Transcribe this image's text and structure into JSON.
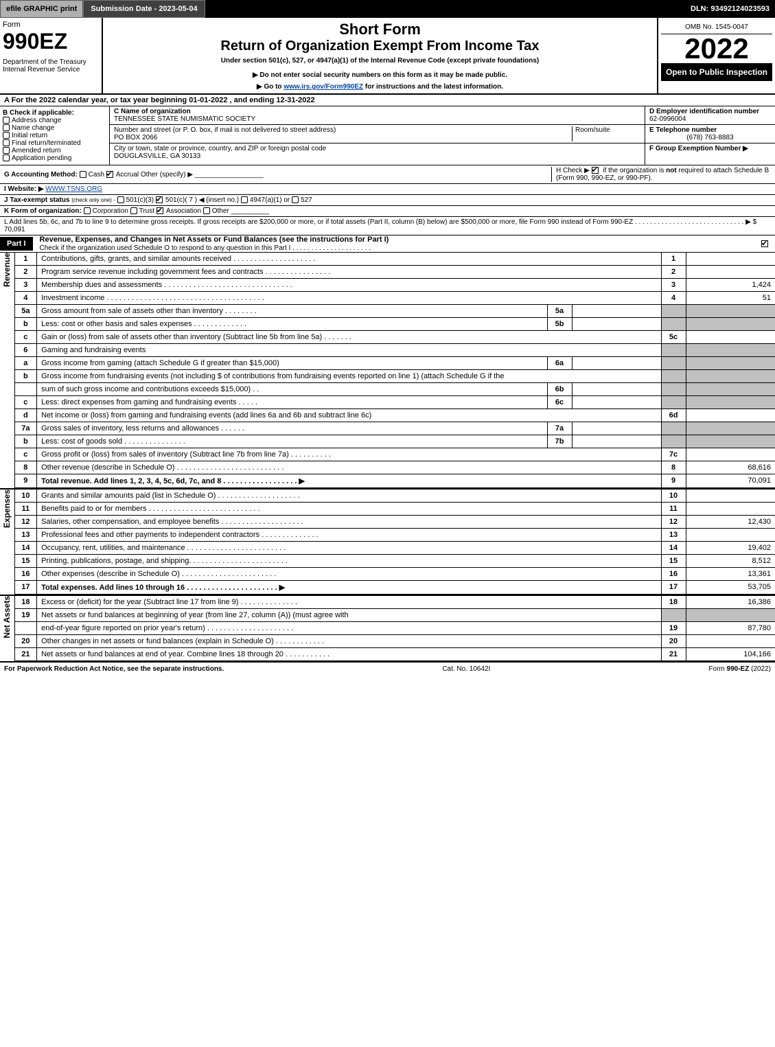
{
  "topbar": {
    "efile": "efile GRAPHIC print",
    "submission": "Submission Date - 2023-05-04",
    "dln": "DLN: 93492124023593"
  },
  "header": {
    "form_word": "Form",
    "form_number": "990EZ",
    "dept": "Department of the Treasury",
    "irs": "Internal Revenue Service",
    "short_form": "Short Form",
    "return_title": "Return of Organization Exempt From Income Tax",
    "under_section": "Under section 501(c), 527, or 4947(a)(1) of the Internal Revenue Code (except private foundations)",
    "no_ssn": "▶ Do not enter social security numbers on this form as it may be made public.",
    "goto": "▶ Go to ",
    "goto_link": "www.irs.gov/Form990EZ",
    "goto_suffix": " for instructions and the latest information.",
    "omb": "OMB No. 1545-0047",
    "year": "2022",
    "inspection": "Open to Public Inspection"
  },
  "row_a": "A  For the 2022 calendar year, or tax year beginning 01-01-2022  , and ending 12-31-2022",
  "section_b": {
    "title": "B  Check if applicable:",
    "items": [
      "Address change",
      "Name change",
      "Initial return",
      "Final return/terminated",
      "Amended return",
      "Application pending"
    ],
    "c_label": "C Name of organization",
    "c_name": "TENNESSEE STATE NUMISMATIC SOCIETY",
    "addr_label": "Number and street (or P. O. box, if mail is not delivered to street address)",
    "room_label": "Room/suite",
    "addr": "PO BOX 2066",
    "city_label": "City or town, state or province, country, and ZIP or foreign postal code",
    "city": "DOUGLASVILLE, GA  30133",
    "d_label": "D Employer identification number",
    "d_val": "62-0996004",
    "e_label": "E Telephone number",
    "e_val": "(678) 763-8883",
    "f_label": "F Group Exemption Number  ▶"
  },
  "row_g": {
    "label": "G Accounting Method:",
    "cash": "Cash",
    "accrual": "Accrual",
    "other": "Other (specify) ▶"
  },
  "row_h": {
    "text1": "H  Check ▶ ",
    "text2": " if the organization is ",
    "not": "not",
    "text3": " required to attach Schedule B (Form 990, 990-EZ, or 990-PF)."
  },
  "row_i": {
    "label": "I Website: ▶",
    "val": "WWW.TSNS.ORG"
  },
  "row_j": {
    "label": "J Tax-exempt status",
    "hint": "(check only one) -",
    "o1": "501(c)(3)",
    "o2": "501(c)( 7 ) ◀ (insert no.)",
    "o3": "4947(a)(1) or",
    "o4": "527"
  },
  "row_k": {
    "label": "K Form of organization:",
    "o1": "Corporation",
    "o2": "Trust",
    "o3": "Association",
    "o4": "Other"
  },
  "row_l": {
    "text": "L Add lines 5b, 6c, and 7b to line 9 to determine gross receipts. If gross receipts are $200,000 or more, or if total assets (Part II, column (B) below) are $500,000 or more, file Form 990 instead of Form 990-EZ  .  .  .  .  .  .  .  .  .  .  .  .  .  .  .  .  .  .  .  .  .  .  .  .  .  .  .  .  . ▶ $ ",
    "val": "70,091"
  },
  "part1": {
    "label": "Part I",
    "title": "Revenue, Expenses, and Changes in Net Assets or Fund Balances (see the instructions for Part I)",
    "check_line": "Check if the organization used Schedule O to respond to any question in this Part I  .  .  .  .  .  .  .  .  .  .  .  .  .  .  .  .  .  .  .  .  .  "
  },
  "sidelabels": {
    "revenue": "Revenue",
    "expenses": "Expenses",
    "netassets": "Net Assets"
  },
  "revenue_lines": [
    {
      "no": "1",
      "desc": "Contributions, gifts, grants, and similar amounts received  .  .  .  .  .  .  .  .  .  .  .  .  .  .  .  .  .  .  .  .",
      "rno": "1",
      "val": ""
    },
    {
      "no": "2",
      "desc": "Program service revenue including government fees and contracts  .  .  .  .  .  .  .  .  .  .  .  .  .  .  .  .",
      "rno": "2",
      "val": ""
    },
    {
      "no": "3",
      "desc": "Membership dues and assessments  .  .  .  .  .  .  .  .  .  .  .  .  .  .  .  .  .  .  .  .  .  .  .  .  .  .  .  .  .  .  .",
      "rno": "3",
      "val": "1,424"
    },
    {
      "no": "4",
      "desc": "Investment income  .  .  .  .  .  .  .  .  .  .  .  .  .  .  .  .  .  .  .  .  .  .  .  .  .  .  .  .  .  .  .  .  .  .  .  .  .  .",
      "rno": "4",
      "val": "51"
    }
  ],
  "sub_lines": [
    {
      "no": "5a",
      "desc": "Gross amount from sale of assets other than inventory  .  .  .  .  .  .  .  .",
      "sub": "5a"
    },
    {
      "no": "b",
      "desc": "Less: cost or other basis and sales expenses  .  .  .  .  .  .  .  .  .  .  .  .  .",
      "sub": "5b"
    },
    {
      "no": "c",
      "desc": "Gain or (loss) from sale of assets other than inventory (Subtract line 5b from line 5a)  .  .  .  .  .  .  .",
      "rno": "5c",
      "full": true
    },
    {
      "no": "6",
      "desc": "Gaming and fundraising events",
      "plain": true
    },
    {
      "no": "a",
      "desc": "Gross income from gaming (attach Schedule G if greater than $15,000)",
      "sub": "6a"
    },
    {
      "no": "b",
      "desc": "Gross income from fundraising events (not including $                        of contributions from fundraising events reported on line 1) (attach Schedule G if the",
      "plain": true
    },
    {
      "no": "",
      "desc": "sum of such gross income and contributions exceeds $15,000)      .   .",
      "sub": "6b"
    },
    {
      "no": "c",
      "desc": "Less: direct expenses from gaming and fundraising events    .  .  .  .  .",
      "sub": "6c"
    },
    {
      "no": "d",
      "desc": "Net income or (loss) from gaming and fundraising events (add lines 6a and 6b and subtract line 6c)",
      "rno": "6d",
      "full": true
    },
    {
      "no": "7a",
      "desc": "Gross sales of inventory, less returns and allowances  .  .  .  .  .  .",
      "sub": "7a"
    },
    {
      "no": "b",
      "desc": "Less: cost of goods sold          .  .  .  .  .  .  .  .  .  .  .  .  .  .  .",
      "sub": "7b"
    },
    {
      "no": "c",
      "desc": "Gross profit or (loss) from sales of inventory (Subtract line 7b from line 7a)  .  .  .  .  .  .  .  .  .  .",
      "rno": "7c",
      "full": true
    },
    {
      "no": "8",
      "desc": "Other revenue (describe in Schedule O)  .  .  .  .  .  .  .  .  .  .  .  .  .  .  .  .  .  .  .  .  .  .  .  .  .  .",
      "rno": "8",
      "val": "68,616",
      "full": true
    },
    {
      "no": "9",
      "desc": "Total revenue. Add lines 1, 2, 3, 4, 5c, 6d, 7c, and 8   .  .  .  .  .  .  .  .  .  .  .  .  .  .  .  .  .  . ▶",
      "rno": "9",
      "val": "70,091",
      "full": true,
      "bold": true
    }
  ],
  "expense_lines": [
    {
      "no": "10",
      "desc": "Grants and similar amounts paid (list in Schedule O)  .  .  .  .  .  .  .  .  .  .  .  .  .  .  .  .  .  .  .  .",
      "rno": "10",
      "val": ""
    },
    {
      "no": "11",
      "desc": "Benefits paid to or for members      .  .  .  .  .  .  .  .  .  .  .  .  .  .  .  .  .  .  .  .  .  .  .  .  .  .  .",
      "rno": "11",
      "val": ""
    },
    {
      "no": "12",
      "desc": "Salaries, other compensation, and employee benefits  .  .  .  .  .  .  .  .  .  .  .  .  .  .  .  .  .  .  .  .",
      "rno": "12",
      "val": "12,430"
    },
    {
      "no": "13",
      "desc": "Professional fees and other payments to independent contractors   .  .  .  .  .  .  .  .  .  .  .  .  .  .",
      "rno": "13",
      "val": ""
    },
    {
      "no": "14",
      "desc": "Occupancy, rent, utilities, and maintenance .  .  .  .  .  .  .  .  .  .  .  .  .  .  .  .  .  .  .  .  .  .  .  .",
      "rno": "14",
      "val": "19,402"
    },
    {
      "no": "15",
      "desc": "Printing, publications, postage, and shipping.  .  .  .  .  .  .  .  .  .  .  .  .  .  .  .  .  .  .  .  .  .  .  .",
      "rno": "15",
      "val": "8,512"
    },
    {
      "no": "16",
      "desc": "Other expenses (describe in Schedule O)      .  .  .  .  .  .  .  .  .  .  .  .  .  .  .  .  .  .  .  .  .  .  .",
      "rno": "16",
      "val": "13,361"
    },
    {
      "no": "17",
      "desc": "Total expenses. Add lines 10 through 16      .  .  .  .  .  .  .  .  .  .  .  .  .  .  .  .  .  .  .  .  .  . ▶",
      "rno": "17",
      "val": "53,705",
      "bold": true
    }
  ],
  "netasset_lines": [
    {
      "no": "18",
      "desc": "Excess or (deficit) for the year (Subtract line 17 from line 9)        .  .  .  .  .  .  .  .  .  .  .  .  .  .",
      "rno": "18",
      "val": "16,386"
    },
    {
      "no": "19",
      "desc": "Net assets or fund balances at beginning of year (from line 27, column (A)) (must agree with",
      "plain": true
    },
    {
      "no": "",
      "desc": "end-of-year figure reported on prior year's return) .  .  .  .  .  .  .  .  .  .  .  .  .  .  .  .  .  .  .  .  .",
      "rno": "19",
      "val": "87,780"
    },
    {
      "no": "20",
      "desc": "Other changes in net assets or fund balances (explain in Schedule O)  .  .  .  .  .  .  .  .  .  .  .  .",
      "rno": "20",
      "val": ""
    },
    {
      "no": "21",
      "desc": "Net assets or fund balances at end of year. Combine lines 18 through 20  .  .  .  .  .  .  .  .  .  .  .",
      "rno": "21",
      "val": "104,166"
    }
  ],
  "footer": {
    "left": "For Paperwork Reduction Act Notice, see the separate instructions.",
    "mid": "Cat. No. 10642I",
    "right_prefix": "Form ",
    "right_form": "990-EZ",
    "right_suffix": " (2022)"
  }
}
